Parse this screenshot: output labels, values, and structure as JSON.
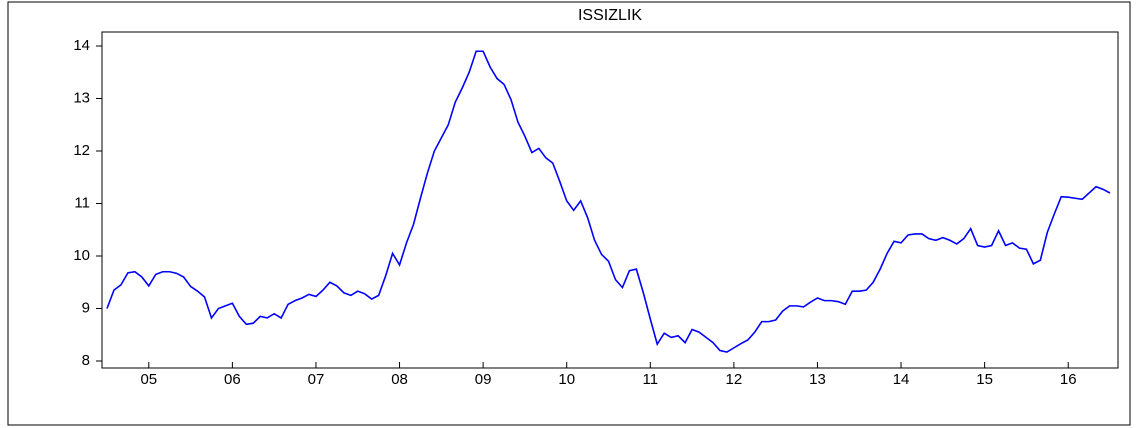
{
  "chart_data": {
    "type": "line",
    "title": "ISSIZLIK",
    "categories": [
      null,
      null,
      null,
      null,
      null,
      null,
      "05",
      null,
      null,
      null,
      null,
      null,
      null,
      null,
      null,
      null,
      null,
      null,
      "06",
      null,
      null,
      null,
      null,
      null,
      null,
      null,
      null,
      null,
      null,
      null,
      "07",
      null,
      null,
      null,
      null,
      null,
      null,
      null,
      null,
      null,
      null,
      null,
      "08",
      null,
      null,
      null,
      null,
      null,
      null,
      null,
      null,
      null,
      null,
      null,
      "09",
      null,
      null,
      null,
      null,
      null,
      null,
      null,
      null,
      null,
      null,
      null,
      "10",
      null,
      null,
      null,
      null,
      null,
      null,
      null,
      null,
      null,
      null,
      null,
      "11",
      null,
      null,
      null,
      null,
      null,
      null,
      null,
      null,
      null,
      null,
      null,
      "12",
      null,
      null,
      null,
      null,
      null,
      null,
      null,
      null,
      null,
      null,
      null,
      "13",
      null,
      null,
      null,
      null,
      null,
      null,
      null,
      null,
      null,
      null,
      null,
      "14",
      null,
      null,
      null,
      null,
      null,
      null,
      null,
      null,
      null,
      null,
      null,
      "15",
      null,
      null,
      null,
      null,
      null,
      null,
      null,
      null,
      null,
      null,
      null,
      "16",
      null,
      null,
      null,
      null,
      null,
      null
    ],
    "series": [
      {
        "color": "#0000ff",
        "values": [
          9.0,
          9.35,
          9.45,
          9.68,
          9.7,
          9.6,
          9.43,
          9.65,
          9.7,
          9.7,
          9.67,
          9.6,
          9.42,
          9.33,
          9.22,
          8.82,
          9.0,
          9.05,
          9.1,
          8.85,
          8.7,
          8.72,
          8.85,
          8.82,
          8.9,
          8.82,
          9.08,
          9.15,
          9.2,
          9.27,
          9.23,
          9.35,
          9.5,
          9.43,
          9.3,
          9.25,
          9.33,
          9.28,
          9.18,
          9.25,
          9.62,
          10.05,
          9.83,
          10.25,
          10.6,
          11.1,
          11.58,
          12.0,
          12.25,
          12.5,
          12.93,
          13.2,
          13.5,
          13.9,
          13.9,
          13.6,
          13.38,
          13.27,
          12.98,
          12.55,
          12.28,
          11.97,
          12.05,
          11.87,
          11.77,
          11.42,
          11.05,
          10.87,
          11.05,
          10.73,
          10.3,
          10.03,
          9.9,
          9.55,
          9.4,
          9.72,
          9.75,
          9.3,
          8.8,
          8.32,
          8.53,
          8.45,
          8.48,
          8.35,
          8.6,
          8.55,
          8.45,
          8.35,
          8.2,
          8.17,
          8.25,
          8.33,
          8.4,
          8.55,
          8.75,
          8.75,
          8.78,
          8.95,
          9.05,
          9.05,
          9.03,
          9.12,
          9.2,
          9.15,
          9.15,
          9.13,
          9.08,
          9.33,
          9.33,
          9.35,
          9.5,
          9.75,
          10.05,
          10.28,
          10.25,
          10.4,
          10.42,
          10.42,
          10.33,
          10.3,
          10.35,
          10.3,
          10.23,
          10.33,
          10.52,
          10.2,
          10.17,
          10.2,
          10.48,
          10.2,
          10.25,
          10.15,
          10.13,
          9.85,
          9.92,
          10.45,
          10.8,
          11.13,
          11.12,
          11.1,
          11.08,
          11.2,
          11.32,
          11.27,
          11.2
        ]
      }
    ],
    "ylim": [
      8,
      14
    ],
    "yticks": [
      8,
      9,
      10,
      11,
      12,
      13,
      14
    ]
  }
}
